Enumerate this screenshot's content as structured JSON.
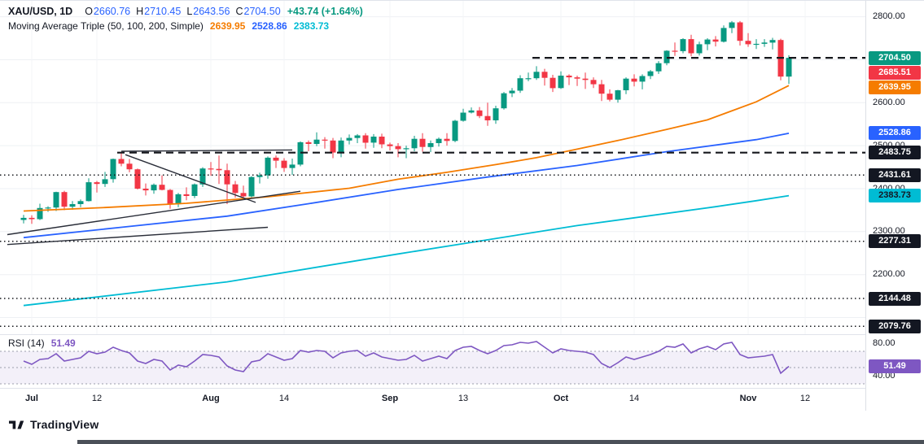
{
  "legend": {
    "title": "XAU/USD, 1D",
    "ohlc": [
      {
        "label": "O",
        "value": "2660.76"
      },
      {
        "label": "H",
        "value": "2710.45"
      },
      {
        "label": "L",
        "value": "2643.56"
      },
      {
        "label": "C",
        "value": "2704.50"
      }
    ],
    "value_color": "#2962ff",
    "change": "+43.74 (+1.64%)",
    "change_color": "#089981",
    "ma_title": "Moving Average Triple (50, 100, 200, Simple)",
    "ma_values": [
      {
        "value": "2639.95",
        "color": "#f57c00"
      },
      {
        "value": "2528.86",
        "color": "#2962ff"
      },
      {
        "value": "2383.73",
        "color": "#00bcd4"
      }
    ]
  },
  "footer": {
    "brand": "TradingView"
  },
  "chart_data": {
    "type": "candlestick",
    "symbol": "XAU/USD",
    "interval": "1D",
    "colors": {
      "up": "#089981",
      "down": "#f23645"
    },
    "ylim": [
      2065,
      2822
    ],
    "grid_prices": [
      2800,
      2700,
      2600,
      2500,
      2400,
      2300,
      2200,
      2100
    ],
    "price_axis_ticks": [
      2800,
      2600,
      2500,
      2400,
      2300,
      2200
    ],
    "price_labels": [
      {
        "text": "2704.50",
        "price": 2704.5,
        "bg": "#089981",
        "fg": "#ffffff"
      },
      {
        "text": "2685.51",
        "price": 2685.51,
        "bg": "#f23645",
        "fg": "#ffffff"
      },
      {
        "text": "2639.95",
        "price": 2639.95,
        "bg": "#f57c00",
        "fg": "#ffffff"
      },
      {
        "text": "2528.86",
        "price": 2528.86,
        "bg": "#2962ff",
        "fg": "#ffffff"
      },
      {
        "text": "2483.75",
        "price": 2483.75,
        "bg": "#131722",
        "fg": "#ffffff"
      },
      {
        "text": "2431.61",
        "price": 2431.61,
        "bg": "#131722",
        "fg": "#ffffff"
      },
      {
        "text": "2383.73",
        "price": 2383.73,
        "bg": "#00bcd4",
        "fg": "#131722"
      },
      {
        "text": "2277.31",
        "price": 2277.31,
        "bg": "#131722",
        "fg": "#ffffff"
      },
      {
        "text": "2144.48",
        "price": 2144.48,
        "bg": "#131722",
        "fg": "#ffffff"
      },
      {
        "text": "2079.76",
        "price": 2079.76,
        "bg": "#131722",
        "fg": "#ffffff"
      }
    ],
    "x_axis_labels": [
      {
        "label": "Jul",
        "index": 1
      },
      {
        "label": "12",
        "index": 9
      },
      {
        "label": "Aug",
        "index": 23
      },
      {
        "label": "14",
        "index": 32
      },
      {
        "label": "Sep",
        "index": 45
      },
      {
        "label": "13",
        "index": 54
      },
      {
        "label": "Oct",
        "index": 66
      },
      {
        "label": "14",
        "index": 75
      },
      {
        "label": "Nov",
        "index": 89
      },
      {
        "label": "12",
        "index": 96
      }
    ],
    "candles": [
      [
        2327,
        2339,
        2319,
        2332
      ],
      [
        2332,
        2338,
        2318,
        2329
      ],
      [
        2329,
        2365,
        2327,
        2355
      ],
      [
        2355,
        2359,
        2346,
        2356
      ],
      [
        2356,
        2393,
        2348,
        2392
      ],
      [
        2392,
        2395,
        2350,
        2358
      ],
      [
        2358,
        2371,
        2351,
        2364
      ],
      [
        2364,
        2375,
        2357,
        2371
      ],
      [
        2371,
        2424,
        2370,
        2415
      ],
      [
        2415,
        2418,
        2391,
        2411
      ],
      [
        2411,
        2439,
        2404,
        2422
      ],
      [
        2422,
        2470,
        2414,
        2469
      ],
      [
        2469,
        2483,
        2452,
        2458
      ],
      [
        2458,
        2469,
        2438,
        2445
      ],
      [
        2445,
        2447,
        2398,
        2400
      ],
      [
        2400,
        2412,
        2384,
        2396
      ],
      [
        2396,
        2412,
        2388,
        2409
      ],
      [
        2409,
        2431,
        2396,
        2397
      ],
      [
        2397,
        2399,
        2353,
        2364
      ],
      [
        2364,
        2390,
        2357,
        2387
      ],
      [
        2387,
        2403,
        2373,
        2383
      ],
      [
        2383,
        2412,
        2378,
        2410
      ],
      [
        2410,
        2450,
        2404,
        2447
      ],
      [
        2447,
        2462,
        2430,
        2446
      ],
      [
        2446,
        2477,
        2411,
        2443
      ],
      [
        2443,
        2458,
        2364,
        2410
      ],
      [
        2410,
        2418,
        2379,
        2390
      ],
      [
        2390,
        2407,
        2378,
        2382
      ],
      [
        2382,
        2429,
        2377,
        2427
      ],
      [
        2427,
        2437,
        2412,
        2431
      ],
      [
        2431,
        2475,
        2423,
        2472
      ],
      [
        2472,
        2477,
        2448,
        2465
      ],
      [
        2465,
        2471,
        2439,
        2448
      ],
      [
        2448,
        2470,
        2432,
        2456
      ],
      [
        2456,
        2510,
        2452,
        2508
      ],
      [
        2508,
        2512,
        2487,
        2504
      ],
      [
        2504,
        2531,
        2499,
        2514
      ],
      [
        2514,
        2520,
        2493,
        2512
      ],
      [
        2512,
        2518,
        2471,
        2484
      ],
      [
        2484,
        2519,
        2473,
        2512
      ],
      [
        2512,
        2526,
        2503,
        2518
      ],
      [
        2518,
        2527,
        2506,
        2524
      ],
      [
        2524,
        2529,
        2493,
        2507
      ],
      [
        2507,
        2527,
        2495,
        2521
      ],
      [
        2521,
        2528,
        2494,
        2503
      ],
      [
        2503,
        2507,
        2489,
        2499
      ],
      [
        2499,
        2506,
        2473,
        2492
      ],
      [
        2492,
        2500,
        2471,
        2494
      ],
      [
        2494,
        2523,
        2487,
        2516
      ],
      [
        2516,
        2529,
        2486,
        2497
      ],
      [
        2497,
        2512,
        2485,
        2506
      ],
      [
        2506,
        2519,
        2498,
        2516
      ],
      [
        2516,
        2529,
        2500,
        2511
      ],
      [
        2511,
        2560,
        2508,
        2558
      ],
      [
        2558,
        2586,
        2556,
        2577
      ],
      [
        2577,
        2589,
        2575,
        2582
      ],
      [
        2582,
        2590,
        2564,
        2569
      ],
      [
        2569,
        2600,
        2546,
        2559
      ],
      [
        2559,
        2593,
        2551,
        2587
      ],
      [
        2587,
        2625,
        2584,
        2622
      ],
      [
        2622,
        2634,
        2613,
        2628
      ],
      [
        2628,
        2664,
        2623,
        2657
      ],
      [
        2657,
        2670,
        2650,
        2657
      ],
      [
        2657,
        2685,
        2653,
        2672
      ],
      [
        2672,
        2679,
        2640,
        2658
      ],
      [
        2658,
        2665,
        2625,
        2634
      ],
      [
        2634,
        2673,
        2632,
        2663
      ],
      [
        2663,
        2666,
        2641,
        2659
      ],
      [
        2659,
        2663,
        2639,
        2656
      ],
      [
        2656,
        2670,
        2632,
        2653
      ],
      [
        2653,
        2659,
        2634,
        2643
      ],
      [
        2643,
        2653,
        2604,
        2621
      ],
      [
        2621,
        2631,
        2603,
        2607
      ],
      [
        2607,
        2630,
        2600,
        2629
      ],
      [
        2629,
        2659,
        2620,
        2656
      ],
      [
        2656,
        2666,
        2638,
        2649
      ],
      [
        2649,
        2666,
        2631,
        2662
      ],
      [
        2662,
        2676,
        2655,
        2673
      ],
      [
        2673,
        2697,
        2667,
        2692
      ],
      [
        2692,
        2722,
        2687,
        2721
      ],
      [
        2721,
        2740,
        2709,
        2720
      ],
      [
        2720,
        2750,
        2715,
        2748
      ],
      [
        2748,
        2758,
        2708,
        2715
      ],
      [
        2715,
        2742,
        2710,
        2736
      ],
      [
        2736,
        2750,
        2722,
        2747
      ],
      [
        2747,
        2755,
        2731,
        2742
      ],
      [
        2742,
        2780,
        2740,
        2774
      ],
      [
        2774,
        2790,
        2762,
        2787
      ],
      [
        2787,
        2790,
        2733,
        2744
      ],
      [
        2744,
        2762,
        2730,
        2736
      ],
      [
        2736,
        2748,
        2725,
        2737
      ],
      [
        2737,
        2748,
        2730,
        2740
      ],
      [
        2740,
        2751,
        2724,
        2746
      ],
      [
        2746,
        2749,
        2652,
        2660.76
      ],
      [
        2660.76,
        2710.45,
        2643.56,
        2704.5
      ]
    ],
    "moving_averages": [
      {
        "name": "SMA 50",
        "period": 50,
        "color": "#f57c00",
        "last": 2639.95,
        "points": [
          [
            0,
            2348
          ],
          [
            10,
            2356
          ],
          [
            20,
            2366
          ],
          [
            30,
            2381
          ],
          [
            40,
            2401
          ],
          [
            46,
            2422
          ],
          [
            52,
            2438
          ],
          [
            58,
            2456
          ],
          [
            63,
            2472
          ],
          [
            68,
            2492
          ],
          [
            73,
            2512
          ],
          [
            79,
            2538
          ],
          [
            84,
            2560
          ],
          [
            90,
            2602
          ],
          [
            94,
            2639.95
          ]
        ]
      },
      {
        "name": "SMA 100",
        "period": 100,
        "color": "#2962ff",
        "last": 2528.86,
        "points": [
          [
            0,
            2286
          ],
          [
            12,
            2310
          ],
          [
            25,
            2336
          ],
          [
            35,
            2365
          ],
          [
            46,
            2398
          ],
          [
            57,
            2427
          ],
          [
            68,
            2454
          ],
          [
            79,
            2486
          ],
          [
            90,
            2514
          ],
          [
            94,
            2528.86
          ]
        ]
      },
      {
        "name": "SMA 200",
        "period": 200,
        "color": "#00bcd4",
        "last": 2383.73,
        "points": [
          [
            0,
            2128
          ],
          [
            25,
            2183
          ],
          [
            46,
            2248
          ],
          [
            68,
            2314
          ],
          [
            85,
            2358
          ],
          [
            90,
            2372
          ],
          [
            94,
            2383.73
          ]
        ]
      }
    ],
    "levels": [
      {
        "value": 2704.5,
        "style": "dashed",
        "from_index": 63
      },
      {
        "value": 2483.75,
        "style": "dashed",
        "from_index": 12
      },
      {
        "value": 2431.61,
        "style": "dotted",
        "from_index": null
      },
      {
        "value": 2277.31,
        "style": "dotted",
        "from_index": null
      },
      {
        "value": 2144.48,
        "style": "dotted",
        "from_index": null
      },
      {
        "value": 2079.76,
        "style": "dotted",
        "from_index": null
      }
    ],
    "trendlines": [
      [
        12,
        2487,
        33,
        2490
      ],
      [
        12.5,
        2479,
        28.5,
        2368
      ],
      [
        -2,
        2293,
        34,
        2394
      ],
      [
        -2,
        2270,
        30,
        2310
      ]
    ],
    "rsi": {
      "title": "RSI (14)",
      "period": 14,
      "value_text": "51.49",
      "last": 51.49,
      "color": "#7e57c2",
      "band_fill": "rgba(126,87,194,0.09)",
      "upper": 70,
      "middle": 50,
      "lower": 30,
      "axis_ticks": [
        80,
        40
      ],
      "scale_range": [
        28,
        90
      ],
      "values": [
        58,
        54,
        60,
        61,
        67,
        58,
        60,
        62,
        70,
        67,
        69,
        75,
        71,
        68,
        58,
        55,
        60,
        58,
        47,
        53,
        51,
        58,
        66,
        65,
        63,
        52,
        47,
        45,
        57,
        59,
        67,
        63,
        59,
        61,
        71,
        69,
        71,
        70,
        62,
        68,
        70,
        71,
        64,
        68,
        63,
        61,
        59,
        60,
        65,
        58,
        61,
        64,
        61,
        71,
        75,
        76,
        71,
        67,
        71,
        77,
        78,
        81,
        80,
        82,
        75,
        68,
        73,
        71,
        70,
        69,
        66,
        55,
        50,
        56,
        63,
        60,
        63,
        66,
        70,
        76,
        75,
        79,
        68,
        73,
        76,
        72,
        79,
        81,
        66,
        62,
        63,
        64,
        66,
        43,
        51.49
      ]
    }
  }
}
